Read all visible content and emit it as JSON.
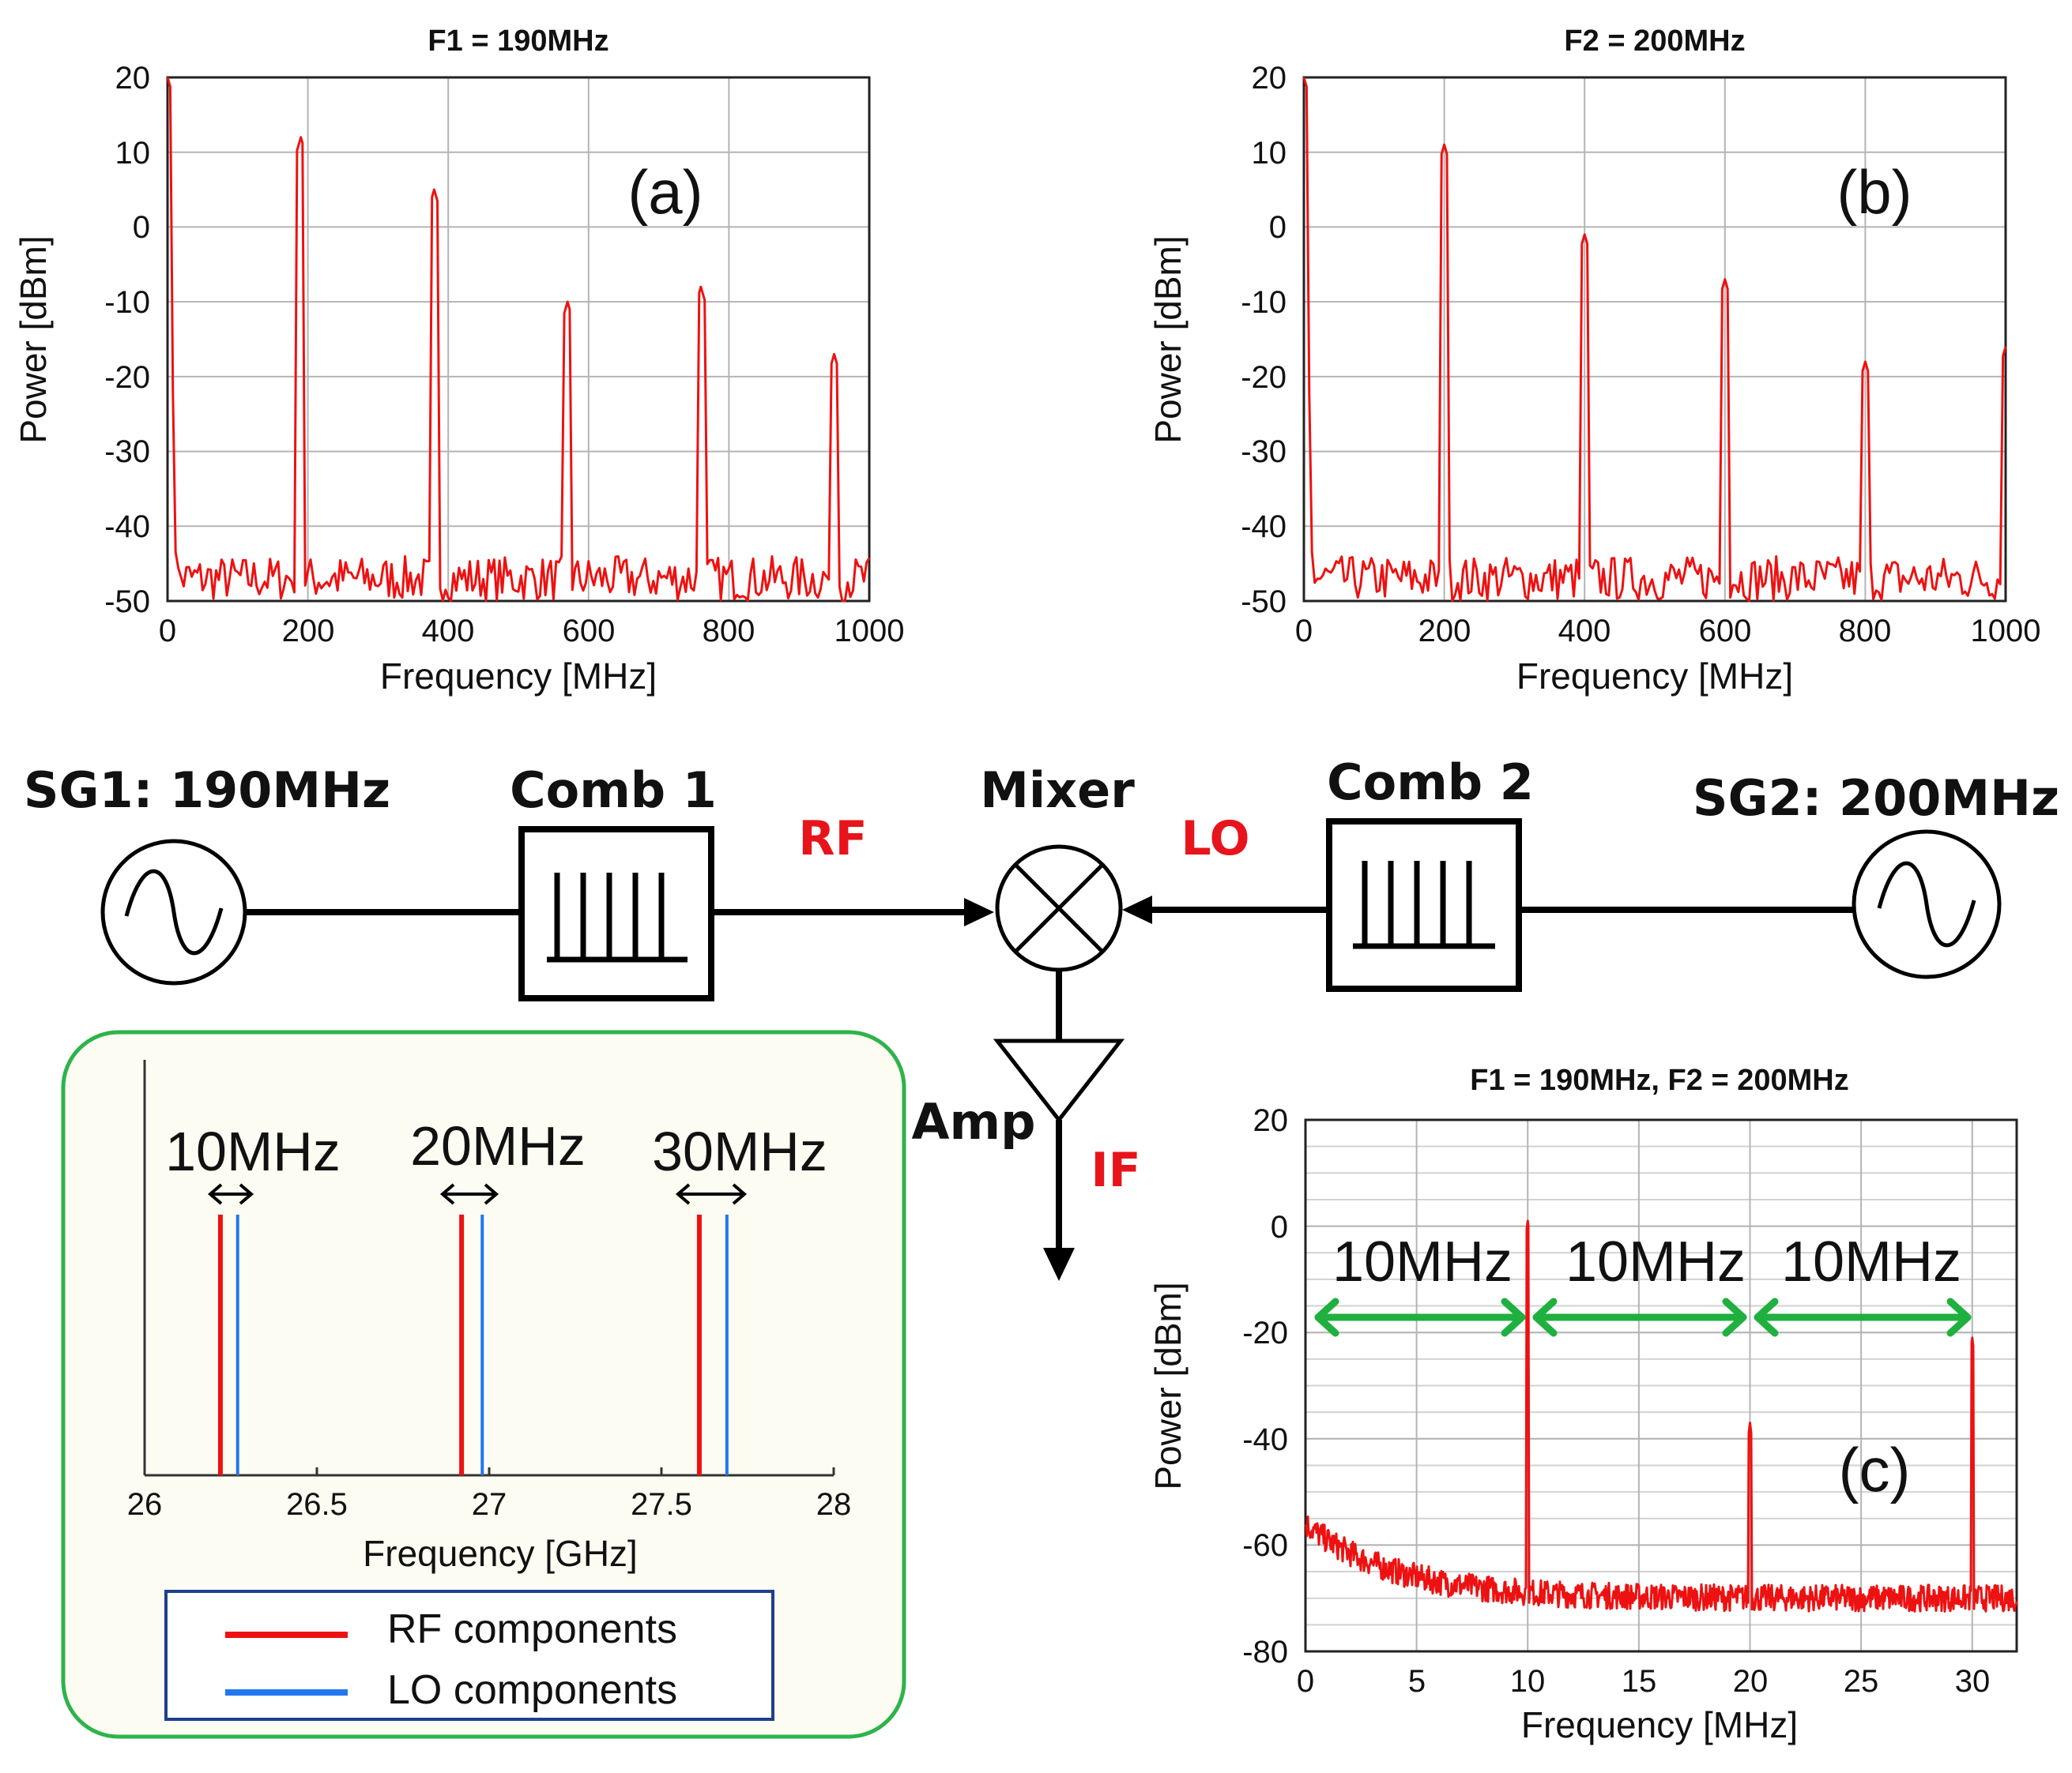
{
  "chart_data": [
    {
      "id": "a",
      "type": "line",
      "title": "F1 = 190MHz",
      "panel_label": "(a)",
      "xlabel": "Frequency [MHz]",
      "ylabel": "Power [dBm]",
      "xlim": [
        0,
        1000
      ],
      "ylim": [
        -50,
        20
      ],
      "xticks": [
        "0",
        "200",
        "400",
        "600",
        "800",
        "1000"
      ],
      "yticks": [
        "20",
        "10",
        "0",
        "-10",
        "-20",
        "-30",
        "-40",
        "-50"
      ],
      "noise_floor_dbm": -47,
      "series": [
        {
          "name": "spectrum",
          "color": "#ee1111",
          "peaks": [
            {
              "x": 0,
              "y": 20
            },
            {
              "x": 190,
              "y": 12
            },
            {
              "x": 380,
              "y": 5
            },
            {
              "x": 570,
              "y": -10
            },
            {
              "x": 760,
              "y": -8
            },
            {
              "x": 950,
              "y": -17
            }
          ]
        }
      ]
    },
    {
      "id": "b",
      "type": "line",
      "title": "F2 = 200MHz",
      "panel_label": "(b)",
      "xlabel": "Frequency [MHz]",
      "ylabel": "Power [dBm]",
      "xlim": [
        0,
        1000
      ],
      "ylim": [
        -50,
        20
      ],
      "xticks": [
        "0",
        "200",
        "400",
        "600",
        "800",
        "1000"
      ],
      "yticks": [
        "20",
        "10",
        "0",
        "-10",
        "-20",
        "-30",
        "-40",
        "-50"
      ],
      "noise_floor_dbm": -47,
      "series": [
        {
          "name": "spectrum",
          "color": "#ee1111",
          "peaks": [
            {
              "x": 0,
              "y": 20
            },
            {
              "x": 200,
              "y": 11
            },
            {
              "x": 400,
              "y": -1
            },
            {
              "x": 600,
              "y": -7
            },
            {
              "x": 800,
              "y": -18
            },
            {
              "x": 1000,
              "y": -16
            }
          ]
        }
      ]
    },
    {
      "id": "c",
      "type": "line",
      "title": "F1 = 190MHz, F2 = 200MHz",
      "panel_label": "(c)",
      "xlabel": "Frequency [MHz]",
      "ylabel": "Power [dBm]",
      "xlim": [
        0,
        32
      ],
      "ylim": [
        -80,
        20
      ],
      "xticks": [
        "0",
        "5",
        "10",
        "15",
        "20",
        "25",
        "30"
      ],
      "yticks": [
        "20",
        "0",
        "-20",
        "-40",
        "-60",
        "-80"
      ],
      "noise_floor_dbm": -70,
      "series": [
        {
          "name": "spectrum",
          "color": "#ee1111",
          "peaks": [
            {
              "x": 10,
              "y": 1
            },
            {
              "x": 20,
              "y": -37
            },
            {
              "x": 30,
              "y": -21
            }
          ]
        }
      ],
      "annotations": [
        {
          "text": "10MHz",
          "from": 0,
          "to": 10
        },
        {
          "text": "10MHz",
          "from": 10,
          "to": 20
        },
        {
          "text": "10MHz",
          "from": 20,
          "to": 30
        }
      ]
    },
    {
      "id": "inset",
      "type": "line",
      "xlabel": "Frequency [GHz]",
      "xlim": [
        26,
        28
      ],
      "xticks": [
        "26",
        "26.5",
        "27",
        "27.5",
        "28"
      ],
      "legend": [
        "RF components",
        "LO components"
      ],
      "series": [
        {
          "name": "RF components",
          "color": "#ee1111",
          "x": [
            26.22,
            26.92,
            27.61
          ]
        },
        {
          "name": "LO components",
          "color": "#2277ee",
          "x": [
            26.27,
            26.98,
            27.69
          ]
        }
      ],
      "annotations": [
        "10MHz",
        "20MHz",
        "30MHz"
      ]
    }
  ],
  "diagram": {
    "sg1": "SG1: 190MHz",
    "comb1": "Comb 1",
    "rf": "RF",
    "mixer": "Mixer",
    "lo": "LO",
    "comb2": "Comb 2",
    "sg2": "SG2: 200MHz",
    "amp": "Amp",
    "if": "IF"
  },
  "colors": {
    "rf": "#ee1111",
    "lo": "#2277ee",
    "arrow": "#1fb040",
    "inset_border": "#2db34a",
    "inset_bg": "#fcfcf2",
    "legend_border": "#1f3f8f"
  }
}
